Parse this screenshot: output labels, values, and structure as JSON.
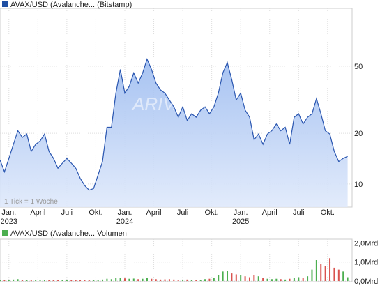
{
  "chart_data": [
    {
      "type": "line",
      "legend": "AVAX/USD (Avalanche... (Bitstamp)",
      "note": "1 Tick = 1 Woche",
      "watermark": "ARIVA.DE",
      "log_scale": true,
      "grid": true,
      "x": [
        -4,
        -2,
        0,
        2,
        4,
        6,
        8,
        10,
        12,
        14,
        16,
        18,
        20,
        22,
        24,
        26,
        28,
        30,
        32,
        34,
        36,
        38,
        40,
        42,
        44,
        46,
        48,
        50,
        52,
        54,
        56,
        58,
        60,
        62,
        64,
        66,
        68,
        70,
        72,
        74,
        76,
        78,
        80,
        82,
        84,
        86,
        88,
        90,
        92,
        94,
        96,
        98,
        100,
        102,
        104,
        106,
        108,
        110,
        112,
        114,
        116,
        118,
        120,
        122,
        124,
        126,
        128,
        130,
        132,
        134,
        136,
        138,
        140,
        142,
        144,
        146,
        148,
        150,
        152
      ],
      "series": [
        {
          "name": "AVAX/USD",
          "color": "#2a56b0",
          "values": [
            13.9,
            11.8,
            14.2,
            17.2,
            20.7,
            18.9,
            19.8,
            15.6,
            17.2,
            18,
            19.8,
            15.6,
            14.2,
            12.4,
            13.3,
            14.2,
            13.3,
            12.4,
            10.8,
            9.8,
            9.2,
            9.4,
            11.3,
            13.6,
            21.7,
            21.7,
            34.6,
            47.8,
            34.6,
            38,
            45.6,
            39.7,
            45.6,
            55,
            47.8,
            39.7,
            36.2,
            34.6,
            31.5,
            28.7,
            24.9,
            28.7,
            23.8,
            26.1,
            24.9,
            27.4,
            28.7,
            26.1,
            28.7,
            34.6,
            45.6,
            52.5,
            41.6,
            31.5,
            34.6,
            27.4,
            24.9,
            18.3,
            19.8,
            17.2,
            19.8,
            20.7,
            22.7,
            20.7,
            21.7,
            17.2,
            24.9,
            26.1,
            22.7,
            24.9,
            26.1,
            32.1,
            26.1,
            20.7,
            19.8,
            15.6,
            13.6,
            14.2,
            14.6
          ]
        }
      ],
      "xlim": [
        -4,
        154
      ],
      "xticks": [
        {
          "value": 0,
          "label": "Jan."
        },
        {
          "value": 13,
          "label": "April"
        },
        {
          "value": 26,
          "label": "Juli"
        },
        {
          "value": 39,
          "label": "Okt."
        },
        {
          "value": 52,
          "label": "Jan."
        },
        {
          "value": 65,
          "label": "April"
        },
        {
          "value": 78,
          "label": "Juli"
        },
        {
          "value": 91,
          "label": "Okt."
        },
        {
          "value": 104,
          "label": "Jan."
        },
        {
          "value": 117,
          "label": "April"
        },
        {
          "value": 130,
          "label": "Juli"
        },
        {
          "value": 143,
          "label": "Okt."
        }
      ],
      "years": [
        {
          "value": 0,
          "label": "2023"
        },
        {
          "value": 52,
          "label": "2024"
        },
        {
          "value": 104,
          "label": "2025"
        }
      ],
      "ylim": [
        7.3,
        110
      ],
      "yticks": [
        10,
        20,
        50
      ]
    },
    {
      "type": "bar",
      "legend": "AVAX/USD (Avalanche... Volumen",
      "grid": true,
      "up_color": "#4caf50",
      "down_color": "#d9534f",
      "values": [
        0.05,
        0.06,
        0.04,
        0.08,
        0.1,
        0.06,
        0.05,
        0.07,
        0.05,
        0.04,
        0.05,
        0.06,
        0.05,
        0.07,
        0.04,
        0.05,
        0.04,
        0.05,
        0.06,
        0.07,
        0.05,
        0.04,
        0.06,
        0.08,
        0.12,
        0.1,
        0.15,
        0.18,
        0.14,
        0.12,
        0.13,
        0.1,
        0.12,
        0.16,
        0.12,
        0.1,
        0.08,
        0.09,
        0.1,
        0.08,
        0.07,
        0.06,
        0.08,
        0.07,
        0.06,
        0.07,
        0.1,
        0.12,
        0.15,
        0.3,
        0.5,
        0.55,
        0.4,
        0.35,
        0.3,
        0.25,
        0.2,
        0.3,
        0.25,
        0.15,
        0.12,
        0.1,
        0.12,
        0.1,
        0.08,
        0.12,
        0.15,
        0.2,
        0.15,
        0.25,
        0.6,
        1.1,
        0.9,
        0.8,
        1.2,
        0.7,
        0.6,
        0.5,
        0.2
      ],
      "ylim": [
        0,
        2.2
      ],
      "yticks": [
        {
          "value": 0,
          "label": "0,0Mrd"
        },
        {
          "value": 1,
          "label": "1,0Mrd"
        },
        {
          "value": 2,
          "label": "2,0Mrd"
        }
      ]
    }
  ]
}
